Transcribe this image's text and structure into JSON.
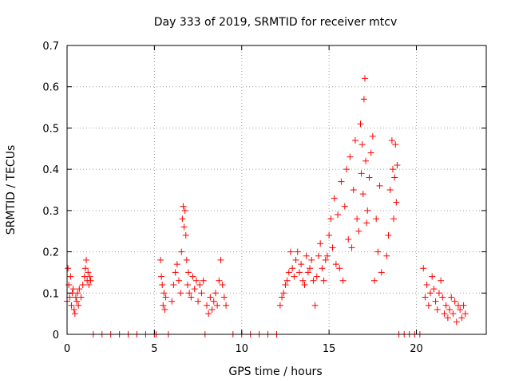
{
  "chart_data": {
    "type": "scatter",
    "title": "Day 333 of 2019, SRMTID for receiver mtcv",
    "xlabel": "GPS time / hours",
    "ylabel": "SRMTID / TECUs",
    "xlim": [
      0,
      24
    ],
    "ylim": [
      0,
      0.7
    ],
    "x_ticks": [
      0,
      5,
      10,
      15,
      20
    ],
    "y_ticks": [
      0,
      0.1,
      0.2,
      0.3,
      0.4,
      0.5,
      0.6,
      0.7
    ],
    "x_tick_labels": [
      "0",
      "5",
      "10",
      "15",
      "20"
    ],
    "y_tick_labels": [
      "0",
      "0.1",
      "0.2",
      "0.3",
      "0.4",
      "0.5",
      "0.6",
      "0.7"
    ],
    "grid": true,
    "marker": "plus",
    "series": [
      {
        "name": "SRMTID",
        "color": "#ff0000",
        "x": [
          0.0,
          0.05,
          0.1,
          0.15,
          0.2,
          0.25,
          0.3,
          0.35,
          0.4,
          0.45,
          0.5,
          0.55,
          0.6,
          0.65,
          0.7,
          0.8,
          0.9,
          1.0,
          1.05,
          1.1,
          1.15,
          1.2,
          1.25,
          1.3,
          1.35,
          1.5,
          2.0,
          2.5,
          3.0,
          3.5,
          4.0,
          4.5,
          5.0,
          5.1,
          5.35,
          5.4,
          5.45,
          5.5,
          5.55,
          5.6,
          5.65,
          5.8,
          6.0,
          6.1,
          6.2,
          6.3,
          6.4,
          6.5,
          6.55,
          6.6,
          6.65,
          6.7,
          6.75,
          6.8,
          6.85,
          6.9,
          6.95,
          7.0,
          7.1,
          7.2,
          7.3,
          7.4,
          7.5,
          7.6,
          7.7,
          7.8,
          7.9,
          8.0,
          8.1,
          8.2,
          8.3,
          8.4,
          8.5,
          8.6,
          8.7,
          8.8,
          8.9,
          9.0,
          9.1,
          9.5,
          10.0,
          10.5,
          11.0,
          11.5,
          12.0,
          12.2,
          12.3,
          12.4,
          12.5,
          12.6,
          12.7,
          12.8,
          12.9,
          13.0,
          13.1,
          13.2,
          13.3,
          13.4,
          13.5,
          13.6,
          13.7,
          13.8,
          13.9,
          14.0,
          14.1,
          14.2,
          14.3,
          14.4,
          14.5,
          14.6,
          14.7,
          14.8,
          14.9,
          15.0,
          15.1,
          15.2,
          15.3,
          15.4,
          15.5,
          15.6,
          15.7,
          15.8,
          15.9,
          16.0,
          16.1,
          16.2,
          16.3,
          16.4,
          16.5,
          16.6,
          16.7,
          16.8,
          16.85,
          16.9,
          16.95,
          17.0,
          17.05,
          17.1,
          17.15,
          17.2,
          17.3,
          17.4,
          17.5,
          17.6,
          17.7,
          17.8,
          17.9,
          18.0,
          18.3,
          18.4,
          18.5,
          18.6,
          18.65,
          18.7,
          18.75,
          18.8,
          18.85,
          18.9,
          19.0,
          19.3,
          19.6,
          19.9,
          20.2,
          20.4,
          20.5,
          20.6,
          20.7,
          20.8,
          20.9,
          21.0,
          21.1,
          21.2,
          21.3,
          21.4,
          21.5,
          21.6,
          21.7,
          21.8,
          21.9,
          22.0,
          22.1,
          22.2,
          22.3,
          22.4,
          22.5,
          22.6,
          22.7,
          22.8
        ],
        "y": [
          0.08,
          0.16,
          0.12,
          0.09,
          0.14,
          0.07,
          0.1,
          0.11,
          0.06,
          0.05,
          0.09,
          0.08,
          0.1,
          0.07,
          0.11,
          0.09,
          0.12,
          0.14,
          0.16,
          0.18,
          0.13,
          0.15,
          0.12,
          0.14,
          0.13,
          0.0,
          0.0,
          0.0,
          0.0,
          0.0,
          0.0,
          0.0,
          0.0,
          0.0,
          0.18,
          0.14,
          0.12,
          0.07,
          0.1,
          0.06,
          0.09,
          0.0,
          0.08,
          0.12,
          0.15,
          0.17,
          0.13,
          0.1,
          0.2,
          0.28,
          0.31,
          0.26,
          0.3,
          0.24,
          0.18,
          0.12,
          0.15,
          0.1,
          0.09,
          0.14,
          0.11,
          0.13,
          0.08,
          0.12,
          0.1,
          0.13,
          0.0,
          0.07,
          0.05,
          0.09,
          0.06,
          0.08,
          0.1,
          0.07,
          0.13,
          0.18,
          0.12,
          0.09,
          0.07,
          0.0,
          0.0,
          0.0,
          0.0,
          0.0,
          0.0,
          0.07,
          0.09,
          0.1,
          0.12,
          0.13,
          0.15,
          0.2,
          0.16,
          0.14,
          0.18,
          0.2,
          0.15,
          0.17,
          0.13,
          0.12,
          0.19,
          0.15,
          0.16,
          0.18,
          0.13,
          0.07,
          0.14,
          0.19,
          0.22,
          0.16,
          0.13,
          0.18,
          0.19,
          0.24,
          0.28,
          0.21,
          0.33,
          0.17,
          0.29,
          0.16,
          0.37,
          0.13,
          0.31,
          0.4,
          0.23,
          0.43,
          0.21,
          0.35,
          0.47,
          0.28,
          0.25,
          0.51,
          0.39,
          0.46,
          0.34,
          0.57,
          0.62,
          0.42,
          0.27,
          0.3,
          0.38,
          0.44,
          0.48,
          0.13,
          0.28,
          0.2,
          0.36,
          0.15,
          0.19,
          0.24,
          0.35,
          0.47,
          0.4,
          0.28,
          0.38,
          0.46,
          0.32,
          0.41,
          0.0,
          0.0,
          0.0,
          0.0,
          0.0,
          0.16,
          0.09,
          0.12,
          0.07,
          0.1,
          0.14,
          0.11,
          0.08,
          0.06,
          0.1,
          0.13,
          0.09,
          0.05,
          0.07,
          0.04,
          0.06,
          0.09,
          0.05,
          0.08,
          0.03,
          0.07,
          0.06,
          0.04,
          0.07,
          0.05
        ]
      }
    ]
  }
}
